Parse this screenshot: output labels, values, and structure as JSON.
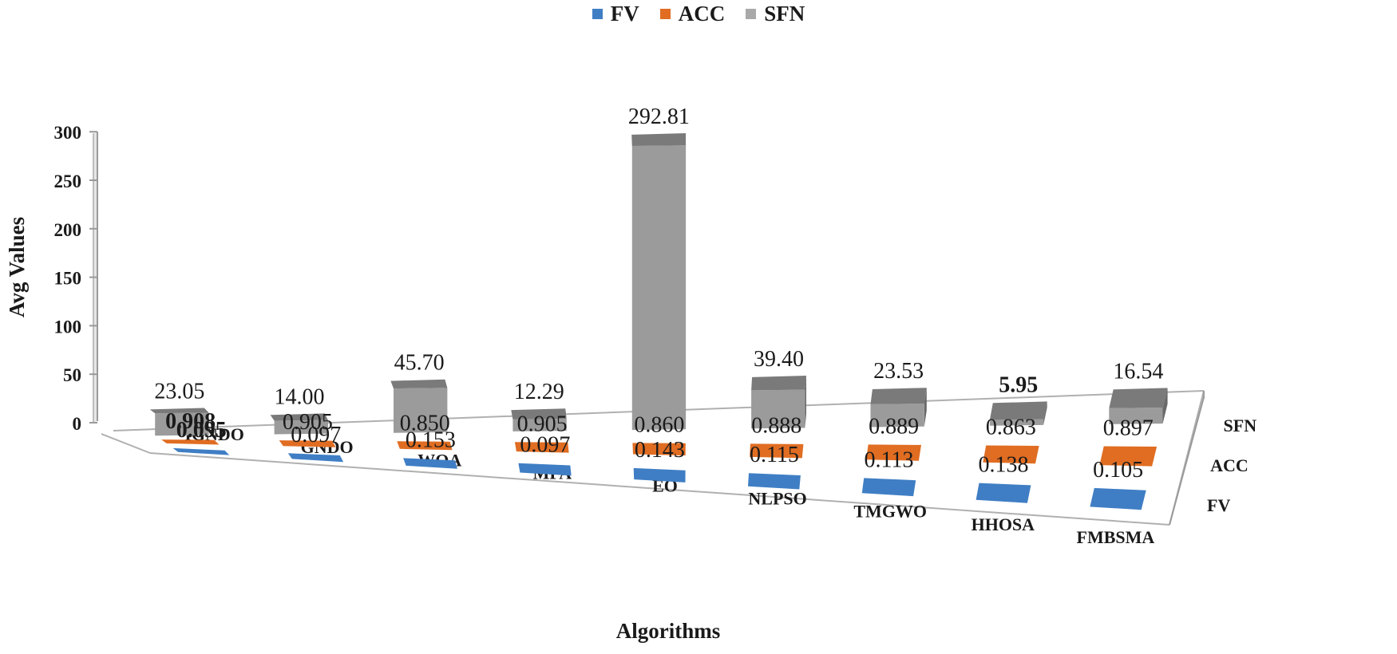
{
  "chart_data": {
    "type": "bar",
    "title": "",
    "xlabel": "Algorithms",
    "ylabel": "Avg Values",
    "ylim": [
      0,
      300
    ],
    "yticks": [
      0,
      50,
      100,
      150,
      200,
      250,
      300
    ],
    "depth_labels": [
      "SFN",
      "ACC",
      "FV"
    ],
    "legend_position": "top",
    "categories": [
      "IGNDO",
      "GNDO",
      "WOA",
      "MPA",
      "EO",
      "NLPSO",
      "TMGWO",
      "HHOSA",
      "FMBSMA"
    ],
    "series": [
      {
        "name": "FV",
        "color": "#3f7ec4",
        "values": [
          0.095,
          0.097,
          0.153,
          0.097,
          0.143,
          0.115,
          0.113,
          0.138,
          0.105
        ],
        "labels": [
          "0.095",
          "0.097",
          "0.153",
          "0.097",
          "0.143",
          "0.115",
          "0.113",
          "0.138",
          "0.105"
        ],
        "bold": [
          true,
          false,
          false,
          false,
          false,
          false,
          false,
          false,
          false
        ]
      },
      {
        "name": "ACC",
        "color": "#e06d22",
        "values": [
          0.908,
          0.905,
          0.85,
          0.905,
          0.86,
          0.888,
          0.889,
          0.863,
          0.897
        ],
        "labels": [
          "0.908",
          "0.905",
          "0.850",
          "0.905",
          "0.860",
          "0.888",
          "0.889",
          "0.863",
          "0.897"
        ],
        "bold": [
          true,
          false,
          false,
          false,
          false,
          false,
          false,
          false,
          false
        ]
      },
      {
        "name": "SFN",
        "color": "#a9a9a9",
        "values": [
          23.05,
          14.0,
          45.7,
          12.29,
          292.81,
          39.4,
          23.53,
          5.95,
          16.54
        ],
        "labels": [
          "23.05",
          "14.00",
          "45.70",
          "12.29",
          "292.81",
          "39.40",
          "23.53",
          "5.95",
          "16.54"
        ],
        "bold": [
          false,
          false,
          false,
          false,
          false,
          false,
          false,
          true,
          false
        ]
      }
    ]
  }
}
